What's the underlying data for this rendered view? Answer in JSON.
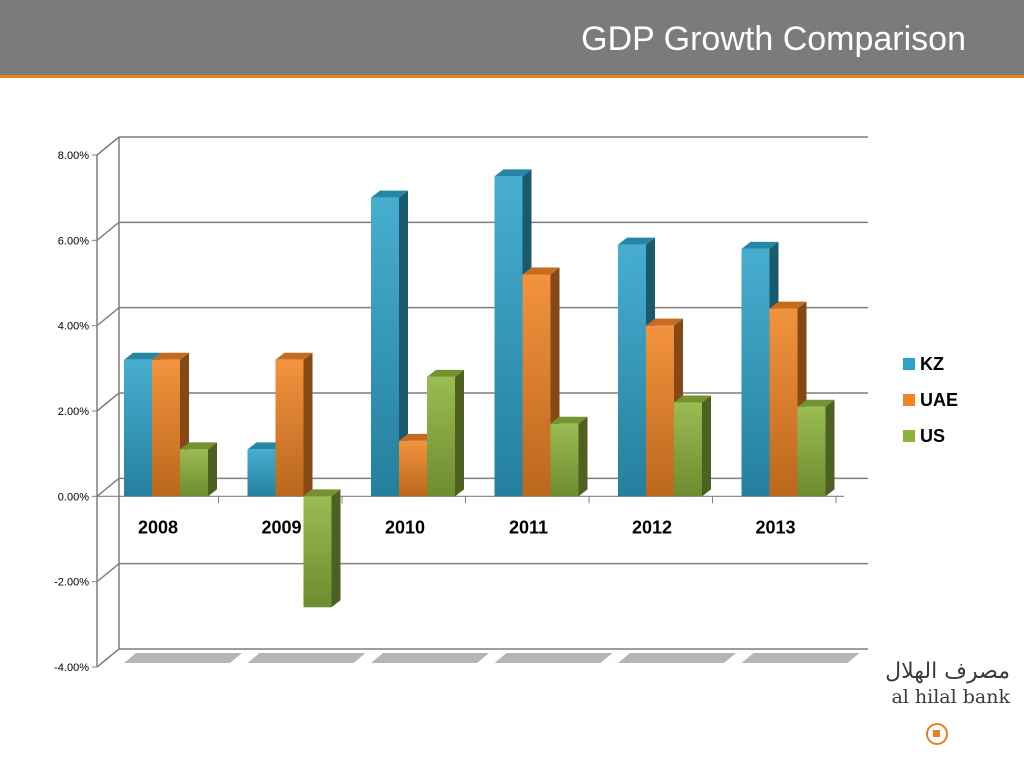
{
  "slide": {
    "title": "GDP Growth Comparison"
  },
  "chart_data": {
    "type": "bar",
    "categories": [
      "2008",
      "2009",
      "2010",
      "2011",
      "2012",
      "2013"
    ],
    "series": [
      {
        "name": "KZ",
        "color": "#2ea3c9",
        "values": [
          3.2,
          1.1,
          7.0,
          7.5,
          5.9,
          5.8
        ]
      },
      {
        "name": "UAE",
        "color": "#f08424",
        "values": [
          3.2,
          3.2,
          1.3,
          5.2,
          4.0,
          4.4
        ]
      },
      {
        "name": "US",
        "color": "#8cb33c",
        "values": [
          1.1,
          -2.6,
          2.8,
          1.7,
          2.2,
          2.1
        ]
      }
    ],
    "ylim": [
      -4,
      8
    ],
    "yticks": [
      "8.00%",
      "6.00%",
      "4.00%",
      "2.00%",
      "0.00%",
      "-2.00%",
      "-4.00%"
    ],
    "ytick_values": [
      8,
      6,
      4,
      2,
      0,
      -2,
      -4
    ],
    "grid": true,
    "legend_position": "right",
    "style": "3d-clustered-column"
  },
  "logo": {
    "arabic": "مصرف الهلال",
    "english": "al hilal bank",
    "mark_color": "#e8801f"
  }
}
